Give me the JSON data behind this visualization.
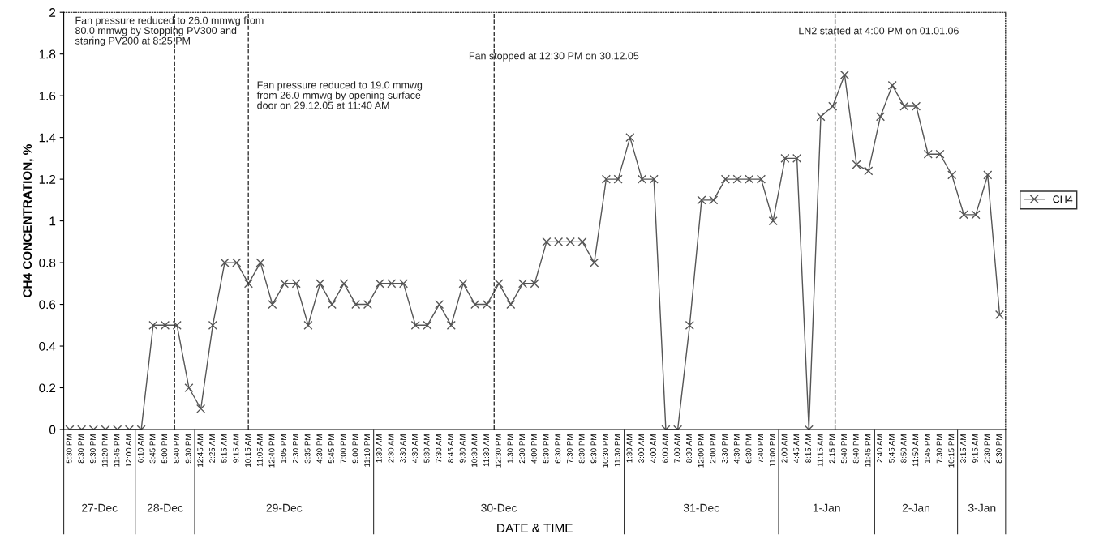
{
  "chart_data": {
    "type": "line",
    "ylabel": "CH4 CONCENTRATION, %",
    "xlabel": "DATE & TIME",
    "categories": [
      "5:30 PM",
      "8:30 PM",
      "9:30 PM",
      "11:20 PM",
      "11:45 PM",
      "12:00 AM",
      "6:10 AM",
      "3:45 PM",
      "5:00 PM",
      "8:40 PM",
      "9:30 PM",
      "12:45 AM",
      "2:25 AM",
      "5:15 AM",
      "9:15 AM",
      "10:15 AM",
      "11:05 AM",
      "12:40 PM",
      "1:05 PM",
      "2:30 PM",
      "3:35 PM",
      "4:30 PM",
      "5:45 PM",
      "7:00 PM",
      "9:00 PM",
      "11:10 PM",
      "1:30 AM",
      "2:30 AM",
      "3:30 AM",
      "4:30 AM",
      "5:30 AM",
      "7:30 AM",
      "8:45 AM",
      "9:30 AM",
      "10:30 AM",
      "11:30 AM",
      "12:30 PM",
      "1:30 PM",
      "2:30 PM",
      "4:00 PM",
      "5:30 PM",
      "6:30 PM",
      "7:30 PM",
      "8:30 PM",
      "9:30 PM",
      "10:30 PM",
      "11:30 PM",
      "1:30 AM",
      "3:00 AM",
      "4:00 AM",
      "6:00 AM",
      "7:00 AM",
      "8:30 AM",
      "12:00 PM",
      "2:00 PM",
      "3:30 PM",
      "4:30 PM",
      "6:30 PM",
      "7:40 PM",
      "11:00 PM",
      "2:00 AM",
      "4:45 AM",
      "8:15 AM",
      "11:15 AM",
      "2:15 PM",
      "5:40 PM",
      "8:40 PM",
      "11:45 PM",
      "2:40 AM",
      "5:45 AM",
      "8:50 AM",
      "11:50 AM",
      "1:45 PM",
      "7:30 PM",
      "10:15 PM",
      "3:15 AM",
      "9:15 AM",
      "2:30 PM",
      "8:30 PM"
    ],
    "series": [
      {
        "name": "CH4",
        "color": "#555555",
        "values": [
          0,
          0,
          0,
          0,
          0,
          0,
          0,
          0.5,
          0.5,
          0.5,
          0.2,
          0.1,
          0.5,
          0.8,
          0.8,
          0.7,
          0.8,
          0.6,
          0.7,
          0.7,
          0.5,
          0.7,
          0.6,
          0.7,
          0.6,
          0.6,
          0.7,
          0.7,
          0.7,
          0.5,
          0.5,
          0.6,
          0.5,
          0.7,
          0.6,
          0.6,
          0.7,
          0.6,
          0.7,
          0.7,
          0.9,
          0.9,
          0.9,
          0.9,
          0.8,
          1.2,
          1.2,
          1.4,
          1.2,
          1.2,
          0,
          0,
          0.5,
          1.1,
          1.1,
          1.2,
          1.2,
          1.2,
          1.2,
          1.0,
          1.3,
          1.3,
          0,
          1.5,
          1.55,
          1.7,
          1.27,
          1.24,
          1.5,
          1.65,
          1.55,
          1.55,
          1.32,
          1.32,
          1.22,
          1.03,
          1.03,
          1.22,
          0.55
        ]
      }
    ],
    "ylim": [
      0,
      2
    ],
    "yticks": [
      0,
      0.2,
      0.4,
      0.6,
      0.8,
      1,
      1.2,
      1.4,
      1.6,
      1.8,
      2
    ],
    "marker": "cross",
    "line_style": "solid",
    "legend": "right",
    "annotations": [
      "Fan pressure reduced to 26.0 mmwg from\n80.0 mmwg by Stopping PV300 and\nstaring PV200 at 8:25 PM",
      "Fan pressure reduced to 19.0 mmwg\nfrom 26.0 mmwg by opening surface\ndoor on 29.12.05 at 11:40 AM",
      "Fan stopped at 12:30 PM on 30.12.05",
      "LN2 started at 4:00 PM on 01.01.06",
      "27-Dec",
      "28-Dec",
      "29-Dec",
      "30-Dec",
      "31-Dec",
      "1-Jan",
      "2-Jan",
      "3-Jan"
    ]
  }
}
